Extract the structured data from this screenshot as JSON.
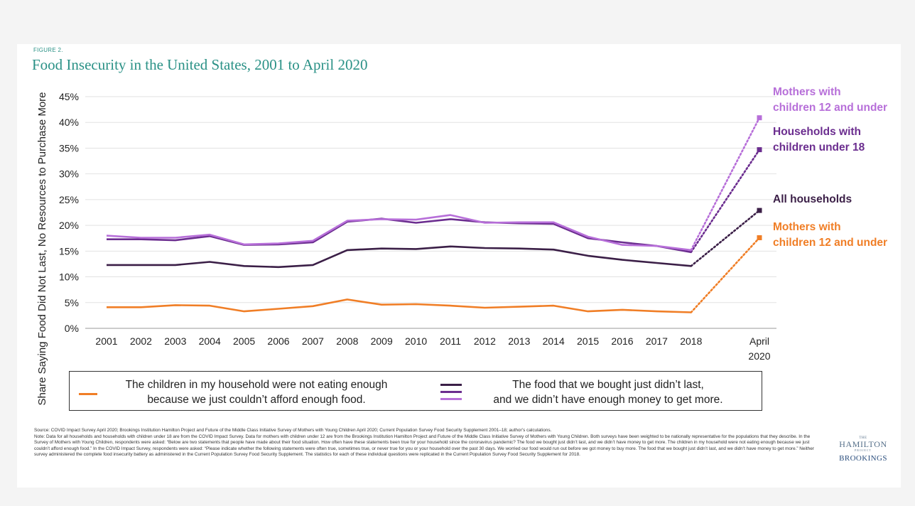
{
  "figure_label": "FIGURE 2.",
  "colors": {
    "accent": "#2a9186",
    "children_not_eating": "#f07e26",
    "all_households": "#3b1f47",
    "households_children_under_18": "#6b2d8f",
    "mothers_children_12": "#b76fd9"
  },
  "chart_data": {
    "type": "line",
    "title": "Food Insecurity in the United States, 2001 to April 2020",
    "ylabel": "Share Saying Food Did Not Last, No Resources to Purchase More",
    "xlabel": "",
    "ylim": [
      0,
      45
    ],
    "yticks": [
      "0%",
      "5%",
      "10%",
      "15%",
      "20%",
      "25%",
      "30%",
      "35%",
      "40%",
      "45%"
    ],
    "categories": [
      "2001",
      "2002",
      "2003",
      "2004",
      "2005",
      "2006",
      "2007",
      "2008",
      "2009",
      "2010",
      "2011",
      "2012",
      "2013",
      "2014",
      "2015",
      "2016",
      "2017",
      "2018"
    ],
    "x_extra_label": [
      "April",
      "2020"
    ],
    "grid": true,
    "series": [
      {
        "key": "mothers_children_12_food",
        "label_lines": [
          "Mothers with",
          "children 12 and under"
        ],
        "color": "#b76fd9",
        "values": [
          18.0,
          17.6,
          17.6,
          18.2,
          16.3,
          16.5,
          17.0,
          20.9,
          21.2,
          21.1,
          22.0,
          20.5,
          20.6,
          20.6,
          17.8,
          16.2,
          16.0,
          15.2
        ],
        "april_2020": 40.9
      },
      {
        "key": "households_children_under_18_food",
        "label_lines": [
          "Households with",
          "children under 18"
        ],
        "color": "#6b2d8f",
        "values": [
          17.3,
          17.3,
          17.1,
          17.9,
          16.2,
          16.3,
          16.7,
          20.7,
          21.3,
          20.5,
          21.2,
          20.6,
          20.4,
          20.3,
          17.5,
          16.7,
          16.0,
          14.8
        ],
        "april_2020": 34.7
      },
      {
        "key": "all_households_food",
        "label_lines": [
          "All households"
        ],
        "color": "#3b1f47",
        "values": [
          12.3,
          12.3,
          12.3,
          12.9,
          12.1,
          11.9,
          12.3,
          15.2,
          15.5,
          15.4,
          15.9,
          15.6,
          15.5,
          15.3,
          14.1,
          13.3,
          12.7,
          12.1
        ],
        "april_2020": 22.9
      },
      {
        "key": "mothers_children_12_children",
        "label_lines": [
          "Mothers with",
          "children 12 and under"
        ],
        "color": "#f07e26",
        "values": [
          4.1,
          4.1,
          4.5,
          4.4,
          3.3,
          3.8,
          4.3,
          5.6,
          4.6,
          4.7,
          4.4,
          4.0,
          4.2,
          4.4,
          3.3,
          3.6,
          3.3,
          3.1
        ],
        "april_2020": 17.6
      }
    ]
  },
  "legend": {
    "left_text": [
      "The children in my household were not eating enough",
      "because we just couldn’t afford enough food."
    ],
    "right_text": [
      "The food that we bought just didn’t last,",
      "and we didn’t have enough money to get more."
    ]
  },
  "footnotes": {
    "source": "Source: COVID Impact Survey April 2020; Brookings Institution Hamilton Project and Future of the Middle Class Initiative Survey of Mothers with Young Children April 2020; Current Population Survey Food Security Supplement 2001–18; author’s calculations.",
    "note": "Note: Data for all households and households with children under 18 are from the COVID Impact Survey. Data for mothers with children under 12 are from the Brookings Institution Hamilton Project and Future of the Middle Class Initiative Survey of Mothers with Young Children. Both surveys have been weighted to be nationally representative for the populations that they describe. In the Survey of Mothers with Young Children, respondents were asked: “Below are two statements that people have made about their food situation. How often have these statements been true for your household since the coronavirus pandemic? The food we bought just didn’t last, and we didn’t have money to get more. The children in my household were not eating enough because we just couldn’t afford enough food.” In the COVID Impact Survey, respondents were asked: “Please indicate whether the following statements were often true, sometimes true, or never true for you or your household over the past 30 days. We worried our food would run out before we got money to buy more. The food that we bought just didn’t last, and we didn’t have money to get more.” Neither survey administered the complete food insecurity battery as administered in the Current Population Survey Food Security Supplement. The statistics for each of these individual questions were replicated in the Current Population Survey Food Security Supplement for 2018."
  },
  "logo": {
    "the": "THE",
    "hamilton": "HAMILTON",
    "project": "PROJECT",
    "brookings": "BROOKINGS"
  }
}
